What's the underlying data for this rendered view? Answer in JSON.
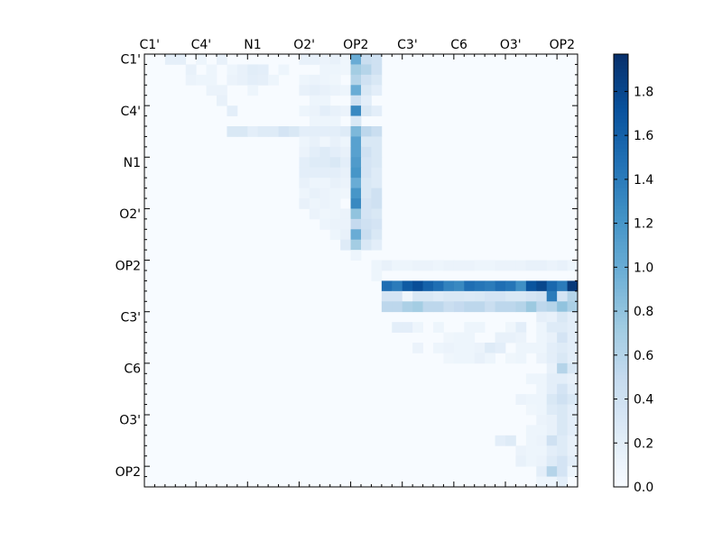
{
  "chart_data": {
    "type": "heatmap",
    "title": "",
    "xlabel": "",
    "ylabel": "",
    "rows": 42,
    "cols": 42,
    "x_tick_labels": [
      "C1'",
      "C4'",
      "N1",
      "O2'",
      "OP2",
      "C3'",
      "C6",
      "O3'",
      "OP2"
    ],
    "y_tick_labels": [
      "C1'",
      "C4'",
      "N1",
      "O2'",
      "OP2",
      "C3'",
      "C6",
      "O3'",
      "OP2"
    ],
    "x_axis_position": "top",
    "colormap": "Blues",
    "colorbar": {
      "position": "right",
      "range": [
        0,
        1.97
      ],
      "tick_labels": [
        "0.0",
        "0.2",
        "0.4",
        "0.6",
        "0.8",
        "1.0",
        "1.2",
        "1.4",
        "1.6",
        "1.8"
      ]
    },
    "value_range": [
      0,
      1.97
    ],
    "estimated": true,
    "background_value": 0.0,
    "cells": [
      [
        0,
        2,
        0.18
      ],
      [
        0,
        3,
        0.18
      ],
      [
        0,
        5,
        0.1
      ],
      [
        0,
        7,
        0.15
      ],
      [
        0,
        15,
        0.15
      ],
      [
        0,
        16,
        0.15
      ],
      [
        0,
        17,
        0.12
      ],
      [
        0,
        18,
        0.15
      ],
      [
        0,
        19,
        0.08
      ],
      [
        0,
        20,
        1.0
      ],
      [
        0,
        21,
        0.45
      ],
      [
        0,
        22,
        0.4
      ],
      [
        1,
        4,
        0.15
      ],
      [
        1,
        6,
        0.1
      ],
      [
        1,
        8,
        0.1
      ],
      [
        1,
        9,
        0.15
      ],
      [
        1,
        10,
        0.22
      ],
      [
        1,
        11,
        0.2
      ],
      [
        1,
        13,
        0.1
      ],
      [
        1,
        17,
        0.1
      ],
      [
        1,
        18,
        0.1
      ],
      [
        1,
        19,
        0.08
      ],
      [
        1,
        20,
        0.7
      ],
      [
        1,
        21,
        0.6
      ],
      [
        1,
        22,
        0.4
      ],
      [
        2,
        4,
        0.12
      ],
      [
        2,
        5,
        0.1
      ],
      [
        2,
        6,
        0.1
      ],
      [
        2,
        8,
        0.12
      ],
      [
        2,
        9,
        0.15
      ],
      [
        2,
        10,
        0.2
      ],
      [
        2,
        11,
        0.18
      ],
      [
        2,
        12,
        0.1
      ],
      [
        2,
        15,
        0.1
      ],
      [
        2,
        16,
        0.12
      ],
      [
        2,
        17,
        0.1
      ],
      [
        2,
        18,
        0.08
      ],
      [
        2,
        20,
        0.6
      ],
      [
        2,
        21,
        0.4
      ],
      [
        2,
        22,
        0.3
      ],
      [
        3,
        6,
        0.12
      ],
      [
        3,
        7,
        0.12
      ],
      [
        3,
        10,
        0.1
      ],
      [
        3,
        15,
        0.15
      ],
      [
        3,
        16,
        0.18
      ],
      [
        3,
        17,
        0.15
      ],
      [
        3,
        18,
        0.12
      ],
      [
        3,
        19,
        0.1
      ],
      [
        3,
        20,
        1.0
      ],
      [
        3,
        21,
        0.3
      ],
      [
        3,
        22,
        0.2
      ],
      [
        4,
        7,
        0.15
      ],
      [
        4,
        16,
        0.1
      ],
      [
        4,
        17,
        0.1
      ],
      [
        4,
        20,
        0.4
      ],
      [
        4,
        21,
        0.2
      ],
      [
        5,
        8,
        0.2
      ],
      [
        5,
        15,
        0.1
      ],
      [
        5,
        16,
        0.12
      ],
      [
        5,
        17,
        0.2
      ],
      [
        5,
        18,
        0.15
      ],
      [
        5,
        19,
        0.12
      ],
      [
        5,
        20,
        1.3
      ],
      [
        5,
        21,
        0.3
      ],
      [
        5,
        22,
        0.2
      ],
      [
        6,
        16,
        0.1
      ],
      [
        6,
        17,
        0.1
      ],
      [
        6,
        18,
        0.1
      ],
      [
        6,
        20,
        0.3
      ],
      [
        7,
        8,
        0.3
      ],
      [
        7,
        9,
        0.3
      ],
      [
        7,
        10,
        0.2
      ],
      [
        7,
        11,
        0.25
      ],
      [
        7,
        12,
        0.25
      ],
      [
        7,
        13,
        0.35
      ],
      [
        7,
        14,
        0.3
      ],
      [
        7,
        15,
        0.2
      ],
      [
        7,
        16,
        0.2
      ],
      [
        7,
        17,
        0.2
      ],
      [
        7,
        18,
        0.2
      ],
      [
        7,
        19,
        0.25
      ],
      [
        7,
        20,
        0.9
      ],
      [
        7,
        21,
        0.55
      ],
      [
        7,
        22,
        0.45
      ],
      [
        8,
        15,
        0.1
      ],
      [
        8,
        16,
        0.15
      ],
      [
        8,
        17,
        0.08
      ],
      [
        8,
        18,
        0.15
      ],
      [
        8,
        19,
        0.1
      ],
      [
        8,
        20,
        1.1
      ],
      [
        8,
        21,
        0.3
      ],
      [
        8,
        22,
        0.3
      ],
      [
        9,
        15,
        0.12
      ],
      [
        9,
        16,
        0.2
      ],
      [
        9,
        17,
        0.25
      ],
      [
        9,
        18,
        0.2
      ],
      [
        9,
        19,
        0.15
      ],
      [
        9,
        20,
        1.1
      ],
      [
        9,
        21,
        0.4
      ],
      [
        9,
        22,
        0.3
      ],
      [
        10,
        15,
        0.2
      ],
      [
        10,
        16,
        0.25
      ],
      [
        10,
        17,
        0.25
      ],
      [
        10,
        18,
        0.3
      ],
      [
        10,
        19,
        0.2
      ],
      [
        10,
        20,
        1.15
      ],
      [
        10,
        21,
        0.35
      ],
      [
        10,
        22,
        0.3
      ],
      [
        11,
        15,
        0.2
      ],
      [
        11,
        16,
        0.2
      ],
      [
        11,
        17,
        0.2
      ],
      [
        11,
        18,
        0.2
      ],
      [
        11,
        19,
        0.15
      ],
      [
        11,
        20,
        1.2
      ],
      [
        11,
        21,
        0.35
      ],
      [
        11,
        22,
        0.25
      ],
      [
        12,
        15,
        0.15
      ],
      [
        12,
        16,
        0.1
      ],
      [
        12,
        17,
        0.1
      ],
      [
        12,
        18,
        0.15
      ],
      [
        12,
        19,
        0.12
      ],
      [
        12,
        20,
        1.0
      ],
      [
        12,
        21,
        0.3
      ],
      [
        12,
        22,
        0.25
      ],
      [
        13,
        15,
        0.1
      ],
      [
        13,
        16,
        0.15
      ],
      [
        13,
        17,
        0.12
      ],
      [
        13,
        18,
        0.1
      ],
      [
        13,
        19,
        0.08
      ],
      [
        13,
        20,
        1.2
      ],
      [
        13,
        21,
        0.3
      ],
      [
        13,
        22,
        0.4
      ],
      [
        14,
        15,
        0.15
      ],
      [
        14,
        16,
        0.1
      ],
      [
        14,
        17,
        0.12
      ],
      [
        14,
        18,
        0.1
      ],
      [
        14,
        20,
        1.3
      ],
      [
        14,
        21,
        0.35
      ],
      [
        14,
        22,
        0.4
      ],
      [
        15,
        16,
        0.12
      ],
      [
        15,
        17,
        0.08
      ],
      [
        15,
        18,
        0.1
      ],
      [
        15,
        19,
        0.12
      ],
      [
        15,
        20,
        0.8
      ],
      [
        15,
        21,
        0.35
      ],
      [
        15,
        22,
        0.3
      ],
      [
        16,
        17,
        0.1
      ],
      [
        16,
        18,
        0.12
      ],
      [
        16,
        19,
        0.12
      ],
      [
        16,
        20,
        0.5
      ],
      [
        16,
        21,
        0.4
      ],
      [
        16,
        22,
        0.35
      ],
      [
        17,
        18,
        0.1
      ],
      [
        17,
        19,
        0.15
      ],
      [
        17,
        20,
        1.0
      ],
      [
        17,
        21,
        0.45
      ],
      [
        17,
        22,
        0.3
      ],
      [
        18,
        19,
        0.25
      ],
      [
        18,
        20,
        0.7
      ],
      [
        18,
        21,
        0.3
      ],
      [
        18,
        22,
        0.2
      ],
      [
        19,
        20,
        0.1
      ],
      [
        20,
        22,
        0.1
      ],
      [
        20,
        23,
        0.15
      ],
      [
        20,
        24,
        0.1
      ],
      [
        20,
        25,
        0.1
      ],
      [
        20,
        26,
        0.12
      ],
      [
        20,
        27,
        0.12
      ],
      [
        20,
        28,
        0.1
      ],
      [
        20,
        29,
        0.12
      ],
      [
        20,
        30,
        0.12
      ],
      [
        20,
        31,
        0.12
      ],
      [
        20,
        32,
        0.1
      ],
      [
        20,
        33,
        0.1
      ],
      [
        20,
        34,
        0.12
      ],
      [
        20,
        35,
        0.12
      ],
      [
        20,
        36,
        0.12
      ],
      [
        20,
        37,
        0.15
      ],
      [
        20,
        38,
        0.15
      ],
      [
        20,
        39,
        0.12
      ],
      [
        20,
        40,
        0.15
      ],
      [
        20,
        41,
        0.1
      ],
      [
        21,
        22,
        0.1
      ],
      [
        22,
        23,
        1.5
      ],
      [
        22,
        24,
        1.4
      ],
      [
        22,
        25,
        1.65
      ],
      [
        22,
        26,
        1.75
      ],
      [
        22,
        27,
        1.6
      ],
      [
        22,
        28,
        1.5
      ],
      [
        22,
        29,
        1.35
      ],
      [
        22,
        30,
        1.3
      ],
      [
        22,
        31,
        1.5
      ],
      [
        22,
        32,
        1.45
      ],
      [
        22,
        33,
        1.4
      ],
      [
        22,
        34,
        1.5
      ],
      [
        22,
        35,
        1.45
      ],
      [
        22,
        36,
        1.25
      ],
      [
        22,
        37,
        1.7
      ],
      [
        22,
        38,
        1.8
      ],
      [
        22,
        39,
        1.55
      ],
      [
        22,
        40,
        1.4
      ],
      [
        22,
        41,
        1.9
      ],
      [
        23,
        23,
        0.35
      ],
      [
        23,
        24,
        0.35
      ],
      [
        23,
        25,
        0.08
      ],
      [
        23,
        26,
        0.3
      ],
      [
        23,
        27,
        0.3
      ],
      [
        23,
        28,
        0.25
      ],
      [
        23,
        29,
        0.3
      ],
      [
        23,
        30,
        0.3
      ],
      [
        23,
        31,
        0.28
      ],
      [
        23,
        32,
        0.3
      ],
      [
        23,
        33,
        0.35
      ],
      [
        23,
        34,
        0.35
      ],
      [
        23,
        35,
        0.3
      ],
      [
        23,
        36,
        0.3
      ],
      [
        23,
        37,
        0.35
      ],
      [
        23,
        38,
        0.4
      ],
      [
        23,
        39,
        1.4
      ],
      [
        23,
        40,
        0.35
      ],
      [
        23,
        41,
        0.6
      ],
      [
        24,
        23,
        0.55
      ],
      [
        24,
        24,
        0.55
      ],
      [
        24,
        25,
        0.65
      ],
      [
        24,
        26,
        0.7
      ],
      [
        24,
        27,
        0.55
      ],
      [
        24,
        28,
        0.55
      ],
      [
        24,
        29,
        0.45
      ],
      [
        24,
        30,
        0.5
      ],
      [
        24,
        31,
        0.55
      ],
      [
        24,
        32,
        0.55
      ],
      [
        24,
        33,
        0.45
      ],
      [
        24,
        34,
        0.55
      ],
      [
        24,
        35,
        0.55
      ],
      [
        24,
        36,
        0.6
      ],
      [
        24,
        37,
        0.75
      ],
      [
        24,
        38,
        0.55
      ],
      [
        24,
        39,
        0.6
      ],
      [
        24,
        40,
        0.8
      ],
      [
        24,
        41,
        0.65
      ],
      [
        25,
        38,
        0.18
      ],
      [
        25,
        39,
        0.15
      ],
      [
        25,
        40,
        0.3
      ],
      [
        25,
        41,
        0.2
      ],
      [
        26,
        24,
        0.2
      ],
      [
        26,
        25,
        0.2
      ],
      [
        26,
        26,
        0.1
      ],
      [
        26,
        28,
        0.1
      ],
      [
        26,
        31,
        0.1
      ],
      [
        26,
        32,
        0.1
      ],
      [
        26,
        35,
        0.08
      ],
      [
        26,
        36,
        0.2
      ],
      [
        26,
        38,
        0.1
      ],
      [
        26,
        39,
        0.25
      ],
      [
        26,
        40,
        0.25
      ],
      [
        26,
        41,
        0.2
      ],
      [
        27,
        29,
        0.08
      ],
      [
        27,
        30,
        0.1
      ],
      [
        27,
        31,
        0.1
      ],
      [
        27,
        34,
        0.15
      ],
      [
        27,
        35,
        0.15
      ],
      [
        27,
        36,
        0.12
      ],
      [
        27,
        38,
        0.1
      ],
      [
        27,
        39,
        0.15
      ],
      [
        27,
        40,
        0.35
      ],
      [
        27,
        41,
        0.2
      ],
      [
        28,
        26,
        0.12
      ],
      [
        28,
        28,
        0.1
      ],
      [
        28,
        29,
        0.12
      ],
      [
        28,
        30,
        0.1
      ],
      [
        28,
        31,
        0.1
      ],
      [
        28,
        32,
        0.12
      ],
      [
        28,
        33,
        0.25
      ],
      [
        28,
        34,
        0.2
      ],
      [
        28,
        36,
        0.1
      ],
      [
        28,
        37,
        0.1
      ],
      [
        28,
        38,
        0.1
      ],
      [
        28,
        39,
        0.2
      ],
      [
        28,
        40,
        0.25
      ],
      [
        28,
        41,
        0.2
      ],
      [
        29,
        29,
        0.08
      ],
      [
        29,
        30,
        0.1
      ],
      [
        29,
        31,
        0.1
      ],
      [
        29,
        32,
        0.15
      ],
      [
        29,
        33,
        0.1
      ],
      [
        29,
        35,
        0.08
      ],
      [
        29,
        36,
        0.1
      ],
      [
        29,
        38,
        0.12
      ],
      [
        29,
        39,
        0.2
      ],
      [
        29,
        40,
        0.3
      ],
      [
        29,
        41,
        0.2
      ],
      [
        30,
        39,
        0.15
      ],
      [
        30,
        40,
        0.6
      ],
      [
        30,
        41,
        0.3
      ],
      [
        31,
        37,
        0.1
      ],
      [
        31,
        38,
        0.1
      ],
      [
        31,
        39,
        0.2
      ],
      [
        31,
        40,
        0.2
      ],
      [
        31,
        41,
        0.15
      ],
      [
        32,
        38,
        0.1
      ],
      [
        32,
        39,
        0.2
      ],
      [
        32,
        40,
        0.35
      ],
      [
        32,
        41,
        0.2
      ],
      [
        33,
        36,
        0.12
      ],
      [
        33,
        37,
        0.1
      ],
      [
        33,
        38,
        0.1
      ],
      [
        33,
        39,
        0.3
      ],
      [
        33,
        40,
        0.4
      ],
      [
        33,
        41,
        0.3
      ],
      [
        34,
        37,
        0.08
      ],
      [
        34,
        38,
        0.1
      ],
      [
        34,
        39,
        0.25
      ],
      [
        34,
        40,
        0.3
      ],
      [
        34,
        41,
        0.2
      ],
      [
        35,
        38,
        0.12
      ],
      [
        35,
        39,
        0.15
      ],
      [
        35,
        40,
        0.3
      ],
      [
        35,
        41,
        0.2
      ],
      [
        36,
        37,
        0.1
      ],
      [
        36,
        38,
        0.1
      ],
      [
        36,
        39,
        0.15
      ],
      [
        36,
        40,
        0.3
      ],
      [
        36,
        41,
        0.2
      ],
      [
        37,
        34,
        0.2
      ],
      [
        37,
        35,
        0.25
      ],
      [
        37,
        37,
        0.1
      ],
      [
        37,
        38,
        0.12
      ],
      [
        37,
        39,
        0.4
      ],
      [
        37,
        40,
        0.25
      ],
      [
        37,
        41,
        0.15
      ],
      [
        38,
        36,
        0.12
      ],
      [
        38,
        37,
        0.1
      ],
      [
        38,
        38,
        0.1
      ],
      [
        38,
        39,
        0.2
      ],
      [
        38,
        40,
        0.25
      ],
      [
        38,
        41,
        0.15
      ],
      [
        39,
        36,
        0.15
      ],
      [
        39,
        37,
        0.1
      ],
      [
        39,
        38,
        0.12
      ],
      [
        39,
        39,
        0.25
      ],
      [
        39,
        40,
        0.35
      ],
      [
        39,
        41,
        0.2
      ],
      [
        40,
        38,
        0.2
      ],
      [
        40,
        39,
        0.6
      ],
      [
        40,
        40,
        0.35
      ],
      [
        40,
        41,
        0.1
      ],
      [
        41,
        38,
        0.1
      ],
      [
        41,
        39,
        0.1
      ],
      [
        41,
        40,
        0.2
      ]
    ]
  }
}
